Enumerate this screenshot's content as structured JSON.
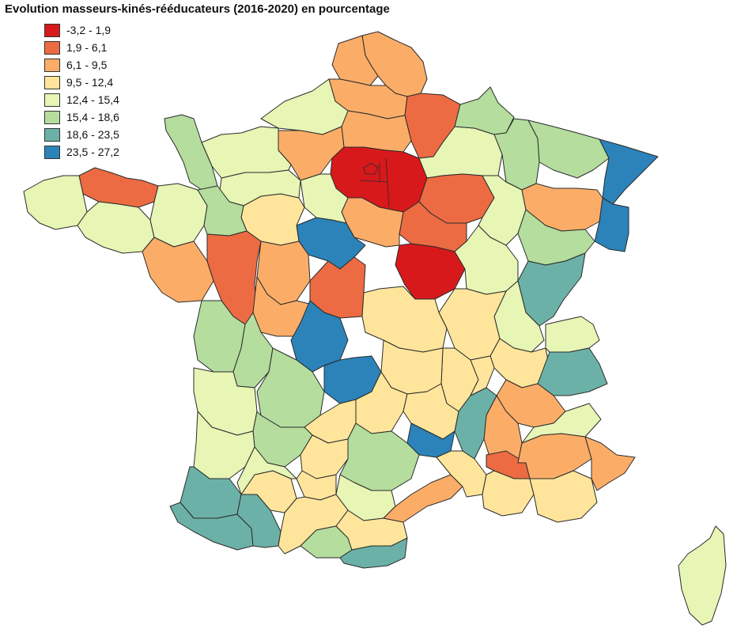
{
  "title": "Evolution masseurs-kinés-rééducateurs (2016-2020) en pourcentage",
  "legend": {
    "placement": "top-left",
    "classes": [
      {
        "label": "-3,2 - 1,9",
        "color": "#d7191c"
      },
      {
        "label": "1,9 - 6,1",
        "color": "#ec6b43"
      },
      {
        "label": "6,1 - 9,5",
        "color": "#fbad68"
      },
      {
        "label": "9,5 - 12,4",
        "color": "#fee59b"
      },
      {
        "label": "12,4 - 15,4",
        "color": "#e7f5b5"
      },
      {
        "label": "15,4 - 18,6",
        "color": "#b4dd9e"
      },
      {
        "label": "18,6 - 23,5",
        "color": "#6cb1a7"
      },
      {
        "label": "23,5 - 27,2",
        "color": "#2b83ba"
      }
    ]
  },
  "map": {
    "region": "France métropolitaine (départements)",
    "regions": [
      {
        "id": "nord",
        "class": 2
      },
      {
        "id": "pas-de-calais",
        "class": 2
      },
      {
        "id": "somme",
        "class": 2
      },
      {
        "id": "aisne",
        "class": 1
      },
      {
        "id": "oise",
        "class": 2
      },
      {
        "id": "seine-maritime",
        "class": 4
      },
      {
        "id": "eure",
        "class": 2
      },
      {
        "id": "paris-area",
        "class": 0
      },
      {
        "id": "marne",
        "class": 4
      },
      {
        "id": "ardennes",
        "class": 5
      },
      {
        "id": "meuse",
        "class": 5
      },
      {
        "id": "moselle",
        "class": 5
      },
      {
        "id": "bas-rhin",
        "class": 7
      },
      {
        "id": "haut-rhin",
        "class": 7
      },
      {
        "id": "aube",
        "class": 1
      },
      {
        "id": "haute-marne",
        "class": 4
      },
      {
        "id": "vosges",
        "class": 2
      },
      {
        "id": "yonne",
        "class": 1
      },
      {
        "id": "nievre",
        "class": 0
      },
      {
        "id": "loiret",
        "class": 2
      },
      {
        "id": "loir-et-cher",
        "class": 7
      },
      {
        "id": "eure-et-loir",
        "class": 4
      },
      {
        "id": "sarthe",
        "class": 3
      },
      {
        "id": "orne",
        "class": 4
      },
      {
        "id": "calvados",
        "class": 4
      },
      {
        "id": "manche",
        "class": 5
      },
      {
        "id": "cotes-d-armor",
        "class": 1
      },
      {
        "id": "finistere",
        "class": 4
      },
      {
        "id": "morbihan",
        "class": 4
      },
      {
        "id": "ille-et-vilaine",
        "class": 4
      },
      {
        "id": "mayenne",
        "class": 5
      },
      {
        "id": "loire-atlantique",
        "class": 2
      },
      {
        "id": "maine-et-loire",
        "class": 1
      },
      {
        "id": "indre-et-loire",
        "class": 2
      },
      {
        "id": "vienne",
        "class": 2
      },
      {
        "id": "cher",
        "class": 1
      },
      {
        "id": "indre",
        "class": 7
      },
      {
        "id": "creuse",
        "class": 7
      },
      {
        "id": "vendee",
        "class": 5
      },
      {
        "id": "deux-sevres",
        "class": 5
      },
      {
        "id": "charente-maritime",
        "class": 4
      },
      {
        "id": "haute-vienne",
        "class": 5
      },
      {
        "id": "cote-d-or",
        "class": 4
      },
      {
        "id": "haute-saone",
        "class": 5
      },
      {
        "id": "doubs",
        "class": 6
      },
      {
        "id": "jura",
        "class": 4
      },
      {
        "id": "saone-et-loire",
        "class": 3
      },
      {
        "id": "allier",
        "class": 3
      },
      {
        "id": "ain",
        "class": 3
      },
      {
        "id": "haute-savoie",
        "class": 4
      },
      {
        "id": "savoie",
        "class": 6
      },
      {
        "id": "isere",
        "class": 2
      },
      {
        "id": "drome",
        "class": 2
      },
      {
        "id": "ardeche",
        "class": 6
      },
      {
        "id": "loire",
        "class": 3
      },
      {
        "id": "rhone",
        "class": 3
      },
      {
        "id": "puy-de-dome",
        "class": 3
      },
      {
        "id": "cantal",
        "class": 3
      },
      {
        "id": "haute-loire",
        "class": 3
      },
      {
        "id": "lozere",
        "class": 7
      },
      {
        "id": "correze",
        "class": 3
      },
      {
        "id": "dordogne",
        "class": 5
      },
      {
        "id": "gironde",
        "class": 4
      },
      {
        "id": "landes",
        "class": 6
      },
      {
        "id": "pyrenees-atlantiques",
        "class": 6
      },
      {
        "id": "hautes-pyrenees",
        "class": 6
      },
      {
        "id": "gers",
        "class": 3
      },
      {
        "id": "lot-et-garonne",
        "class": 4
      },
      {
        "id": "lot",
        "class": 3
      },
      {
        "id": "aveyron",
        "class": 5
      },
      {
        "id": "tarn",
        "class": 4
      },
      {
        "id": "tarn-et-garonne",
        "class": 3
      },
      {
        "id": "haute-garonne",
        "class": 3
      },
      {
        "id": "ariege",
        "class": 5
      },
      {
        "id": "aude",
        "class": 3
      },
      {
        "id": "pyrenees-orientales",
        "class": 6
      },
      {
        "id": "herault",
        "class": 2
      },
      {
        "id": "gard",
        "class": 3
      },
      {
        "id": "vaucluse",
        "class": 1
      },
      {
        "id": "bouches-du-rhone",
        "class": 3
      },
      {
        "id": "var",
        "class": 3
      },
      {
        "id": "alpes-de-haute-provence",
        "class": 2
      },
      {
        "id": "hautes-alpes",
        "class": 4
      },
      {
        "id": "alpes-maritimes",
        "class": 2
      },
      {
        "id": "corse",
        "class": 4
      }
    ]
  }
}
